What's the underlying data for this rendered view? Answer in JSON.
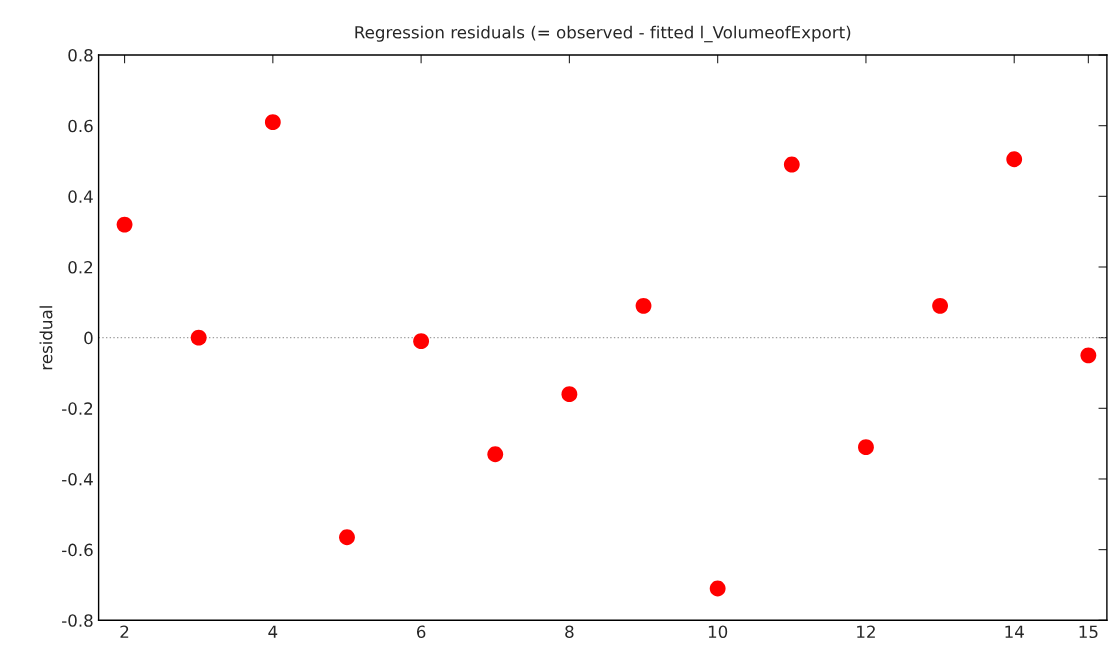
{
  "chart_data": {
    "type": "scatter",
    "title": "Regression residuals (= observed - fitted l_VolumeofExport)",
    "ylabel": "residual",
    "x": [
      2,
      3,
      4,
      5,
      6,
      7,
      8,
      9,
      10,
      11,
      12,
      13,
      14,
      15
    ],
    "values": [
      0.32,
      0.0,
      0.61,
      -0.565,
      -0.01,
      -0.33,
      -0.16,
      0.09,
      -0.71,
      0.49,
      -0.31,
      0.09,
      0.505,
      -0.05
    ],
    "color": "#ff0000",
    "marker": "circle",
    "xlim": [
      1.65,
      15.25
    ],
    "ylim": [
      -0.8,
      0.8
    ],
    "xticks": [
      2,
      4,
      6,
      8,
      10,
      12,
      14,
      15
    ],
    "yticks": [
      -0.8,
      -0.6,
      -0.4,
      -0.2,
      0,
      0.2,
      0.4,
      0.6,
      0.8
    ],
    "ref_lines": [
      {
        "axis": "y",
        "value": 0,
        "color": "#a0a0a0",
        "line_style": "dotted"
      }
    ]
  }
}
